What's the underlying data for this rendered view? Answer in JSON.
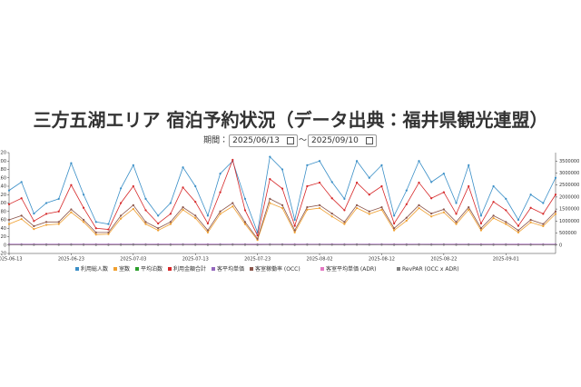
{
  "filter": {
    "label": "期間：",
    "start": "2025/06/13",
    "separator": "〜",
    "end": "2025/09/10"
  },
  "chart_data": {
    "type": "line",
    "title": "三方五湖エリア 宿泊予約状況（データ出典：福井県観光連盟）",
    "x": [
      "2025-06-13",
      "2025-06-15",
      "2025-06-17",
      "2025-06-19",
      "2025-06-21",
      "2025-06-23",
      "2025-06-25",
      "2025-06-27",
      "2025-06-29",
      "2025-07-01",
      "2025-07-03",
      "2025-07-05",
      "2025-07-07",
      "2025-07-09",
      "2025-07-11",
      "2025-07-13",
      "2025-07-15",
      "2025-07-17",
      "2025-07-19",
      "2025-07-21",
      "2025-07-23",
      "2025-07-25",
      "2025-07-27",
      "2025-07-29",
      "2025-07-31",
      "2025-08-02",
      "2025-08-04",
      "2025-08-06",
      "2025-08-08",
      "2025-08-10",
      "2025-08-12",
      "2025-08-14",
      "2025-08-16",
      "2025-08-18",
      "2025-08-20",
      "2025-08-22",
      "2025-08-24",
      "2025-08-26",
      "2025-08-28",
      "2025-08-30",
      "2025-09-01",
      "2025-09-03",
      "2025-09-05",
      "2025-09-07",
      "2025-09-09"
    ],
    "xticks": [
      "2025-06-13",
      "2025-06-23",
      "2025-07-03",
      "2025-07-13",
      "2025-07-23",
      "2025-08-02",
      "2025-08-12",
      "2025-08-22",
      "2025-09-01"
    ],
    "ylim": [
      -20,
      220
    ],
    "yticks": [
      -20,
      0,
      20,
      40,
      60,
      80,
      100,
      120,
      140,
      160,
      180,
      200,
      220
    ],
    "y2lim": [
      -350000,
      3850000
    ],
    "y2ticks": [
      0,
      500000,
      1000000,
      1500000,
      2000000,
      2500000,
      3000000,
      3500000
    ],
    "series": [
      {
        "name": "利用総人数",
        "color": "#3a8fc7",
        "values": [
          130,
          150,
          75,
          100,
          110,
          195,
          120,
          55,
          50,
          135,
          190,
          110,
          70,
          100,
          185,
          140,
          70,
          170,
          200,
          110,
          30,
          210,
          180,
          60,
          190,
          200,
          150,
          110,
          200,
          160,
          190,
          70,
          130,
          200,
          150,
          170,
          100,
          190,
          70,
          140,
          110,
          60,
          120,
          100,
          160
        ]
      },
      {
        "name": "室数",
        "color": "#f0a030",
        "values": [
          50,
          62,
          38,
          48,
          50,
          78,
          55,
          25,
          26,
          63,
          86,
          50,
          35,
          50,
          84,
          64,
          30,
          74,
          92,
          50,
          12,
          100,
          88,
          30,
          84,
          88,
          68,
          50,
          88,
          74,
          84,
          35,
          58,
          88,
          68,
          78,
          50,
          84,
          35,
          64,
          50,
          30,
          54,
          45,
          74
        ]
      },
      {
        "name": "平均泊数",
        "color": "#2ca02c",
        "values": [
          1.2,
          1.1,
          1.3,
          1.2,
          1.1,
          1.2,
          1.3,
          1.1,
          1.2,
          1.2,
          1.3,
          1.2,
          1.1,
          1.2,
          1.3,
          1.2,
          1.1,
          1.2,
          1.4,
          1.3,
          1.2,
          1.3,
          1.4,
          1.2,
          1.3,
          1.4,
          1.3,
          1.2,
          1.3,
          1.2,
          1.3,
          1.2,
          1.2,
          1.3,
          1.2,
          1.2,
          1.1,
          1.2,
          1.1,
          1.2,
          1.1,
          1.2,
          1.1,
          1.2,
          1.2
        ]
      },
      {
        "name": "利用金額合計",
        "color": "#d62728",
        "axis": "y2",
        "values": [
          1700000,
          1950000,
          1000000,
          1300000,
          1400000,
          2500000,
          1550000,
          700000,
          650000,
          1750000,
          2450000,
          1450000,
          900000,
          1300000,
          2400000,
          1800000,
          900000,
          2200000,
          3550000,
          1450000,
          400000,
          2750000,
          2350000,
          800000,
          2450000,
          2600000,
          1950000,
          1450000,
          2600000,
          2100000,
          2450000,
          900000,
          1700000,
          2600000,
          1950000,
          2200000,
          1300000,
          2450000,
          900000,
          1800000,
          1450000,
          800000,
          1550000,
          1300000,
          2100000
        ]
      },
      {
        "name": "客平均単価",
        "color": "#9467bd",
        "values": [
          2,
          2,
          2,
          2,
          2,
          2,
          2,
          2,
          2,
          2,
          2,
          2,
          2,
          2,
          2,
          2,
          2,
          2,
          2,
          2,
          2,
          2,
          2,
          2,
          2,
          2,
          2,
          2,
          2,
          2,
          2,
          2,
          2,
          2,
          2,
          2,
          2,
          2,
          2,
          2,
          2,
          2,
          2,
          2,
          2
        ]
      },
      {
        "name": "客室稼働率 (OCC)",
        "color": "#8c564b",
        "values": [
          60,
          70,
          45,
          55,
          55,
          85,
          60,
          30,
          30,
          70,
          95,
          55,
          40,
          55,
          90,
          70,
          35,
          80,
          100,
          55,
          15,
          110,
          95,
          35,
          90,
          95,
          75,
          55,
          95,
          80,
          90,
          40,
          65,
          95,
          75,
          85,
          55,
          90,
          40,
          70,
          55,
          35,
          60,
          50,
          80
        ]
      },
      {
        "name": "客室平均単価 (ADR)",
        "color": "#e377c2",
        "values": [
          1,
          1,
          1,
          1,
          1,
          1,
          1,
          1,
          1,
          1,
          1,
          1,
          1,
          1,
          1,
          1,
          1,
          1,
          1,
          1,
          1,
          1,
          1,
          1,
          1,
          1,
          1,
          1,
          1,
          1,
          1,
          1,
          1,
          1,
          1,
          1,
          1,
          1,
          1,
          1,
          1,
          1,
          1,
          1,
          1
        ]
      },
      {
        "name": "RevPAR (OCC x ADR)",
        "color": "#7f7f7f",
        "values": [
          0.5,
          0.6,
          0.4,
          0.5,
          0.5,
          0.8,
          0.6,
          0.3,
          0.3,
          0.6,
          0.9,
          0.5,
          0.4,
          0.5,
          0.8,
          0.6,
          0.3,
          0.7,
          0.9,
          0.5,
          0.2,
          1,
          0.9,
          0.3,
          0.8,
          0.9,
          0.7,
          0.5,
          0.9,
          0.7,
          0.8,
          0.4,
          0.6,
          0.9,
          0.7,
          0.8,
          0.5,
          0.8,
          0.4,
          0.6,
          0.5,
          0.3,
          0.6,
          0.5,
          0.7
        ]
      }
    ]
  }
}
